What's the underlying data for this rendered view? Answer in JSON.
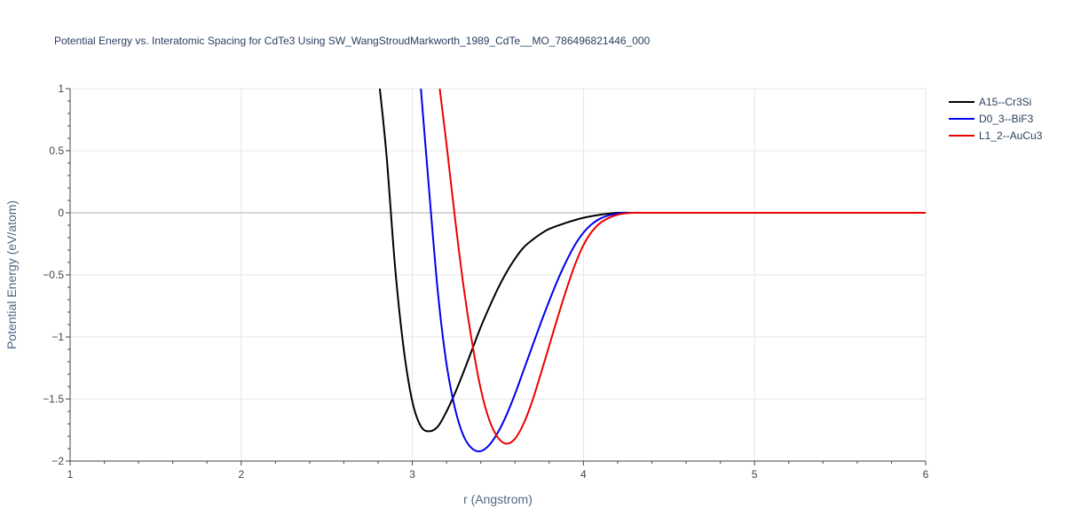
{
  "chart_data": {
    "type": "line",
    "title": "Potential Energy vs. Interatomic Spacing for CdTe3 Using SW_WangStroudMarkworth_1989_CdTe__MO_786496821446_000",
    "xlabel": "r (Angstrom)",
    "ylabel": "Potential Energy (eV/atom)",
    "xlim": [
      1,
      6
    ],
    "ylim": [
      -2,
      1
    ],
    "xticks": [
      1,
      2,
      3,
      4,
      5,
      6
    ],
    "xtick_labels": [
      "1",
      "2",
      "3",
      "4",
      "5",
      "6"
    ],
    "yticks": [
      -2,
      -1.5,
      -1,
      -0.5,
      0,
      0.5,
      1
    ],
    "ytick_labels": [
      "−2",
      "−1.5",
      "−1",
      "−0.5",
      "0",
      "0.5",
      "1"
    ],
    "grid": true,
    "legend_position": "top-right",
    "series": [
      {
        "name": "A15--Cr3Si",
        "color": "#000000",
        "x": [
          2.81,
          2.85,
          2.9,
          2.95,
          3.0,
          3.05,
          3.1,
          3.15,
          3.2,
          3.25,
          3.3,
          3.35,
          3.4,
          3.45,
          3.5,
          3.55,
          3.6,
          3.65,
          3.7,
          3.75,
          3.8,
          3.9,
          4.0,
          4.1,
          4.2,
          4.3,
          4.5,
          5.0,
          5.5,
          6.0
        ],
        "y": [
          1.0,
          0.45,
          -0.45,
          -1.1,
          -1.52,
          -1.72,
          -1.76,
          -1.72,
          -1.6,
          -1.45,
          -1.28,
          -1.1,
          -0.92,
          -0.76,
          -0.61,
          -0.48,
          -0.37,
          -0.28,
          -0.22,
          -0.17,
          -0.13,
          -0.08,
          -0.04,
          -0.015,
          0.0,
          0.0,
          0.0,
          0.0,
          0.0,
          0.0
        ]
      },
      {
        "name": "D0_3--BiF3",
        "color": "#0000ee",
        "x": [
          3.05,
          3.1,
          3.15,
          3.2,
          3.25,
          3.3,
          3.35,
          3.4,
          3.45,
          3.5,
          3.55,
          3.6,
          3.65,
          3.7,
          3.75,
          3.8,
          3.85,
          3.9,
          3.95,
          4.0,
          4.05,
          4.1,
          4.15,
          4.2,
          4.25,
          4.3,
          4.5,
          5.0,
          5.5,
          6.0
        ],
        "y": [
          1.0,
          0.15,
          -0.65,
          -1.22,
          -1.58,
          -1.8,
          -1.9,
          -1.92,
          -1.87,
          -1.77,
          -1.63,
          -1.46,
          -1.27,
          -1.08,
          -0.89,
          -0.71,
          -0.54,
          -0.39,
          -0.26,
          -0.16,
          -0.09,
          -0.045,
          -0.02,
          -0.005,
          0.0,
          0.0,
          0.0,
          0.0,
          0.0,
          0.0
        ]
      },
      {
        "name": "L1_2--AuCu3",
        "color": "#ee0000",
        "x": [
          3.16,
          3.2,
          3.25,
          3.3,
          3.35,
          3.4,
          3.45,
          3.5,
          3.55,
          3.6,
          3.65,
          3.7,
          3.75,
          3.8,
          3.85,
          3.9,
          3.95,
          4.0,
          4.05,
          4.1,
          4.15,
          4.2,
          4.25,
          4.3,
          4.5,
          5.0,
          5.5,
          6.0
        ],
        "y": [
          1.0,
          0.55,
          -0.05,
          -0.6,
          -1.05,
          -1.42,
          -1.67,
          -1.81,
          -1.86,
          -1.82,
          -1.7,
          -1.52,
          -1.3,
          -1.07,
          -0.84,
          -0.62,
          -0.42,
          -0.26,
          -0.15,
          -0.08,
          -0.04,
          -0.015,
          -0.004,
          0.0,
          0.0,
          0.0,
          0.0,
          0.0
        ]
      }
    ]
  }
}
